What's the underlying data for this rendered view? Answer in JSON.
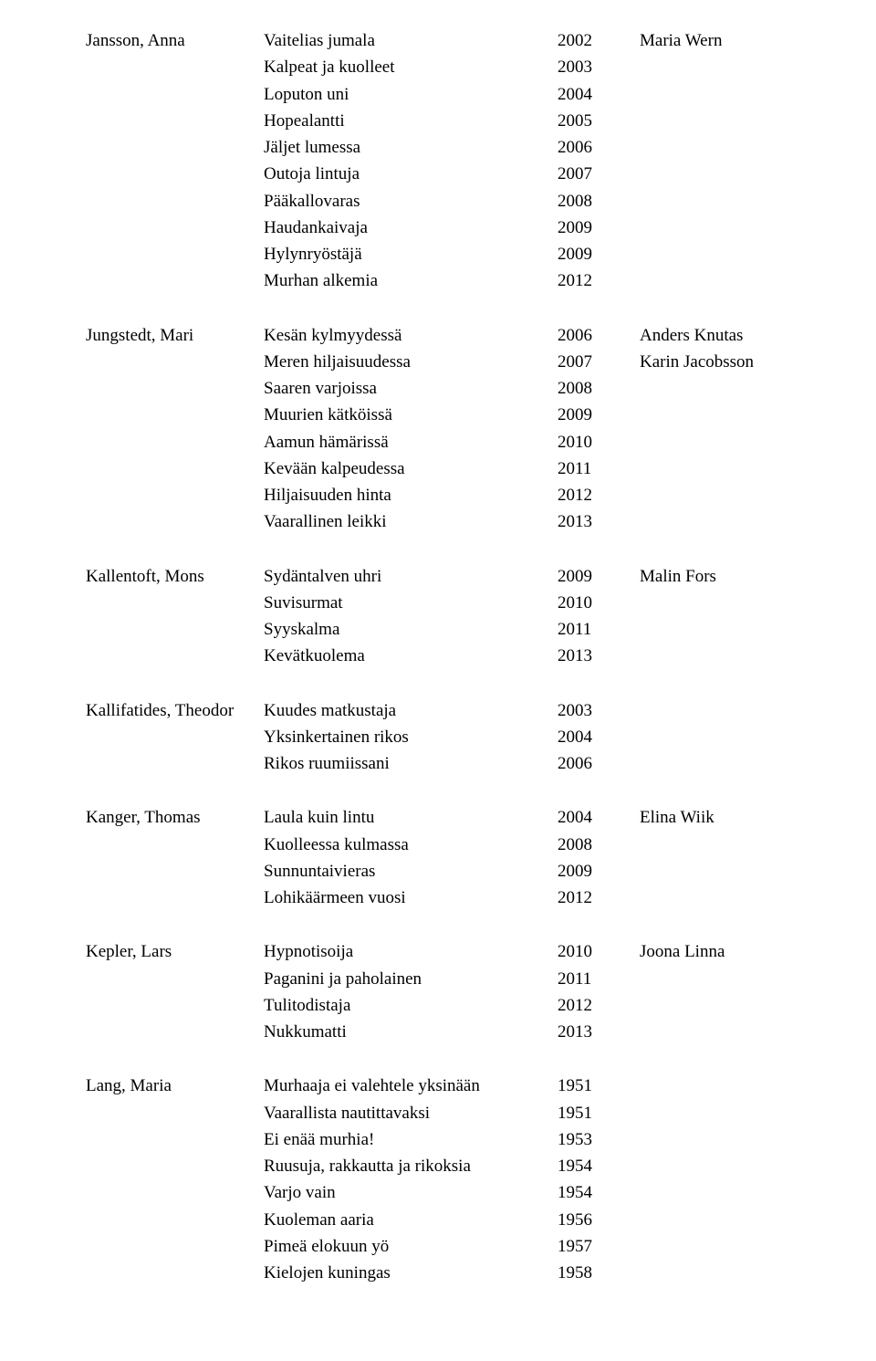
{
  "entries": [
    {
      "author": "Jansson, Anna",
      "rows": [
        {
          "title": "Vaitelias jumala",
          "year": "2002",
          "note": "Maria Wern"
        },
        {
          "title": "Kalpeat ja kuolleet",
          "year": "2003",
          "note": ""
        },
        {
          "title": "Loputon uni",
          "year": "2004",
          "note": ""
        },
        {
          "title": "Hopealantti",
          "year": "2005",
          "note": ""
        },
        {
          "title": "Jäljet lumessa",
          "year": "2006",
          "note": ""
        },
        {
          "title": "Outoja lintuja",
          "year": "2007",
          "note": ""
        },
        {
          "title": "Pääkallovaras",
          "year": "2008",
          "note": ""
        },
        {
          "title": "Haudankaivaja",
          "year": "2009",
          "note": ""
        },
        {
          "title": "Hylynryöstäjä",
          "year": "2009",
          "note": ""
        },
        {
          "title": "Murhan alkemia",
          "year": "2012",
          "note": ""
        }
      ]
    },
    {
      "author": "Jungstedt, Mari",
      "rows": [
        {
          "title": "Kesän kylmyydessä",
          "year": "2006",
          "note": "Anders Knutas"
        },
        {
          "title": "Meren hiljaisuudessa",
          "year": "2007",
          "note": "Karin Jacobsson"
        },
        {
          "title": "Saaren varjoissa",
          "year": "2008",
          "note": ""
        },
        {
          "title": "Muurien kätköissä",
          "year": "2009",
          "note": ""
        },
        {
          "title": "Aamun hämärissä",
          "year": "2010",
          "note": ""
        },
        {
          "title": "Kevään kalpeudessa",
          "year": "2011",
          "note": ""
        },
        {
          "title": "Hiljaisuuden hinta",
          "year": "2012",
          "note": ""
        },
        {
          "title": "Vaarallinen leikki",
          "year": "2013",
          "note": ""
        }
      ]
    },
    {
      "author": "Kallentoft, Mons",
      "rows": [
        {
          "title": "Sydäntalven uhri",
          "year": "2009",
          "note": "Malin Fors"
        },
        {
          "title": "Suvisurmat",
          "year": "2010",
          "note": ""
        },
        {
          "title": "Syyskalma",
          "year": "2011",
          "note": ""
        },
        {
          "title": "Kevätkuolema",
          "year": "2013",
          "note": ""
        }
      ]
    },
    {
      "author": "Kallifatides, Theodor",
      "rows": [
        {
          "title": "Kuudes matkustaja",
          "year": "2003",
          "note": ""
        },
        {
          "title": "Yksinkertainen rikos",
          "year": "2004",
          "note": ""
        },
        {
          "title": "Rikos ruumiissani",
          "year": "2006",
          "note": ""
        }
      ]
    },
    {
      "author": "Kanger, Thomas",
      "rows": [
        {
          "title": "Laula kuin lintu",
          "year": "2004",
          "note": "Elina Wiik"
        },
        {
          "title": "Kuolleessa kulmassa",
          "year": "2008",
          "note": ""
        },
        {
          "title": "Sunnuntaivieras",
          "year": "2009",
          "note": ""
        },
        {
          "title": "Lohikäärmeen vuosi",
          "year": "2012",
          "note": ""
        }
      ]
    },
    {
      "author": "Kepler, Lars",
      "rows": [
        {
          "title": "Hypnotisoija",
          "year": "2010",
          "note": "Joona Linna"
        },
        {
          "title": "Paganini ja paholainen",
          "year": "2011",
          "note": ""
        },
        {
          "title": "Tulitodistaja",
          "year": "2012",
          "note": ""
        },
        {
          "title": "Nukkumatti",
          "year": "2013",
          "note": ""
        }
      ]
    },
    {
      "author": "Lang, Maria",
      "rows": [
        {
          "title": "Murhaaja ei valehtele yksinään",
          "year": "1951",
          "note": ""
        },
        {
          "title": "Vaarallista nautittavaksi",
          "year": "1951",
          "note": ""
        },
        {
          "title": "Ei enää murhia!",
          "year": "1953",
          "note": ""
        },
        {
          "title": "Ruusuja, rakkautta ja rikoksia",
          "year": "1954",
          "note": ""
        },
        {
          "title": "Varjo vain",
          "year": "1954",
          "note": ""
        },
        {
          "title": "Kuoleman aaria",
          "year": "1956",
          "note": ""
        },
        {
          "title": "Pimeä elokuun yö",
          "year": "1957",
          "note": ""
        },
        {
          "title": "Kielojen kuningas",
          "year": "1958",
          "note": ""
        }
      ]
    }
  ]
}
